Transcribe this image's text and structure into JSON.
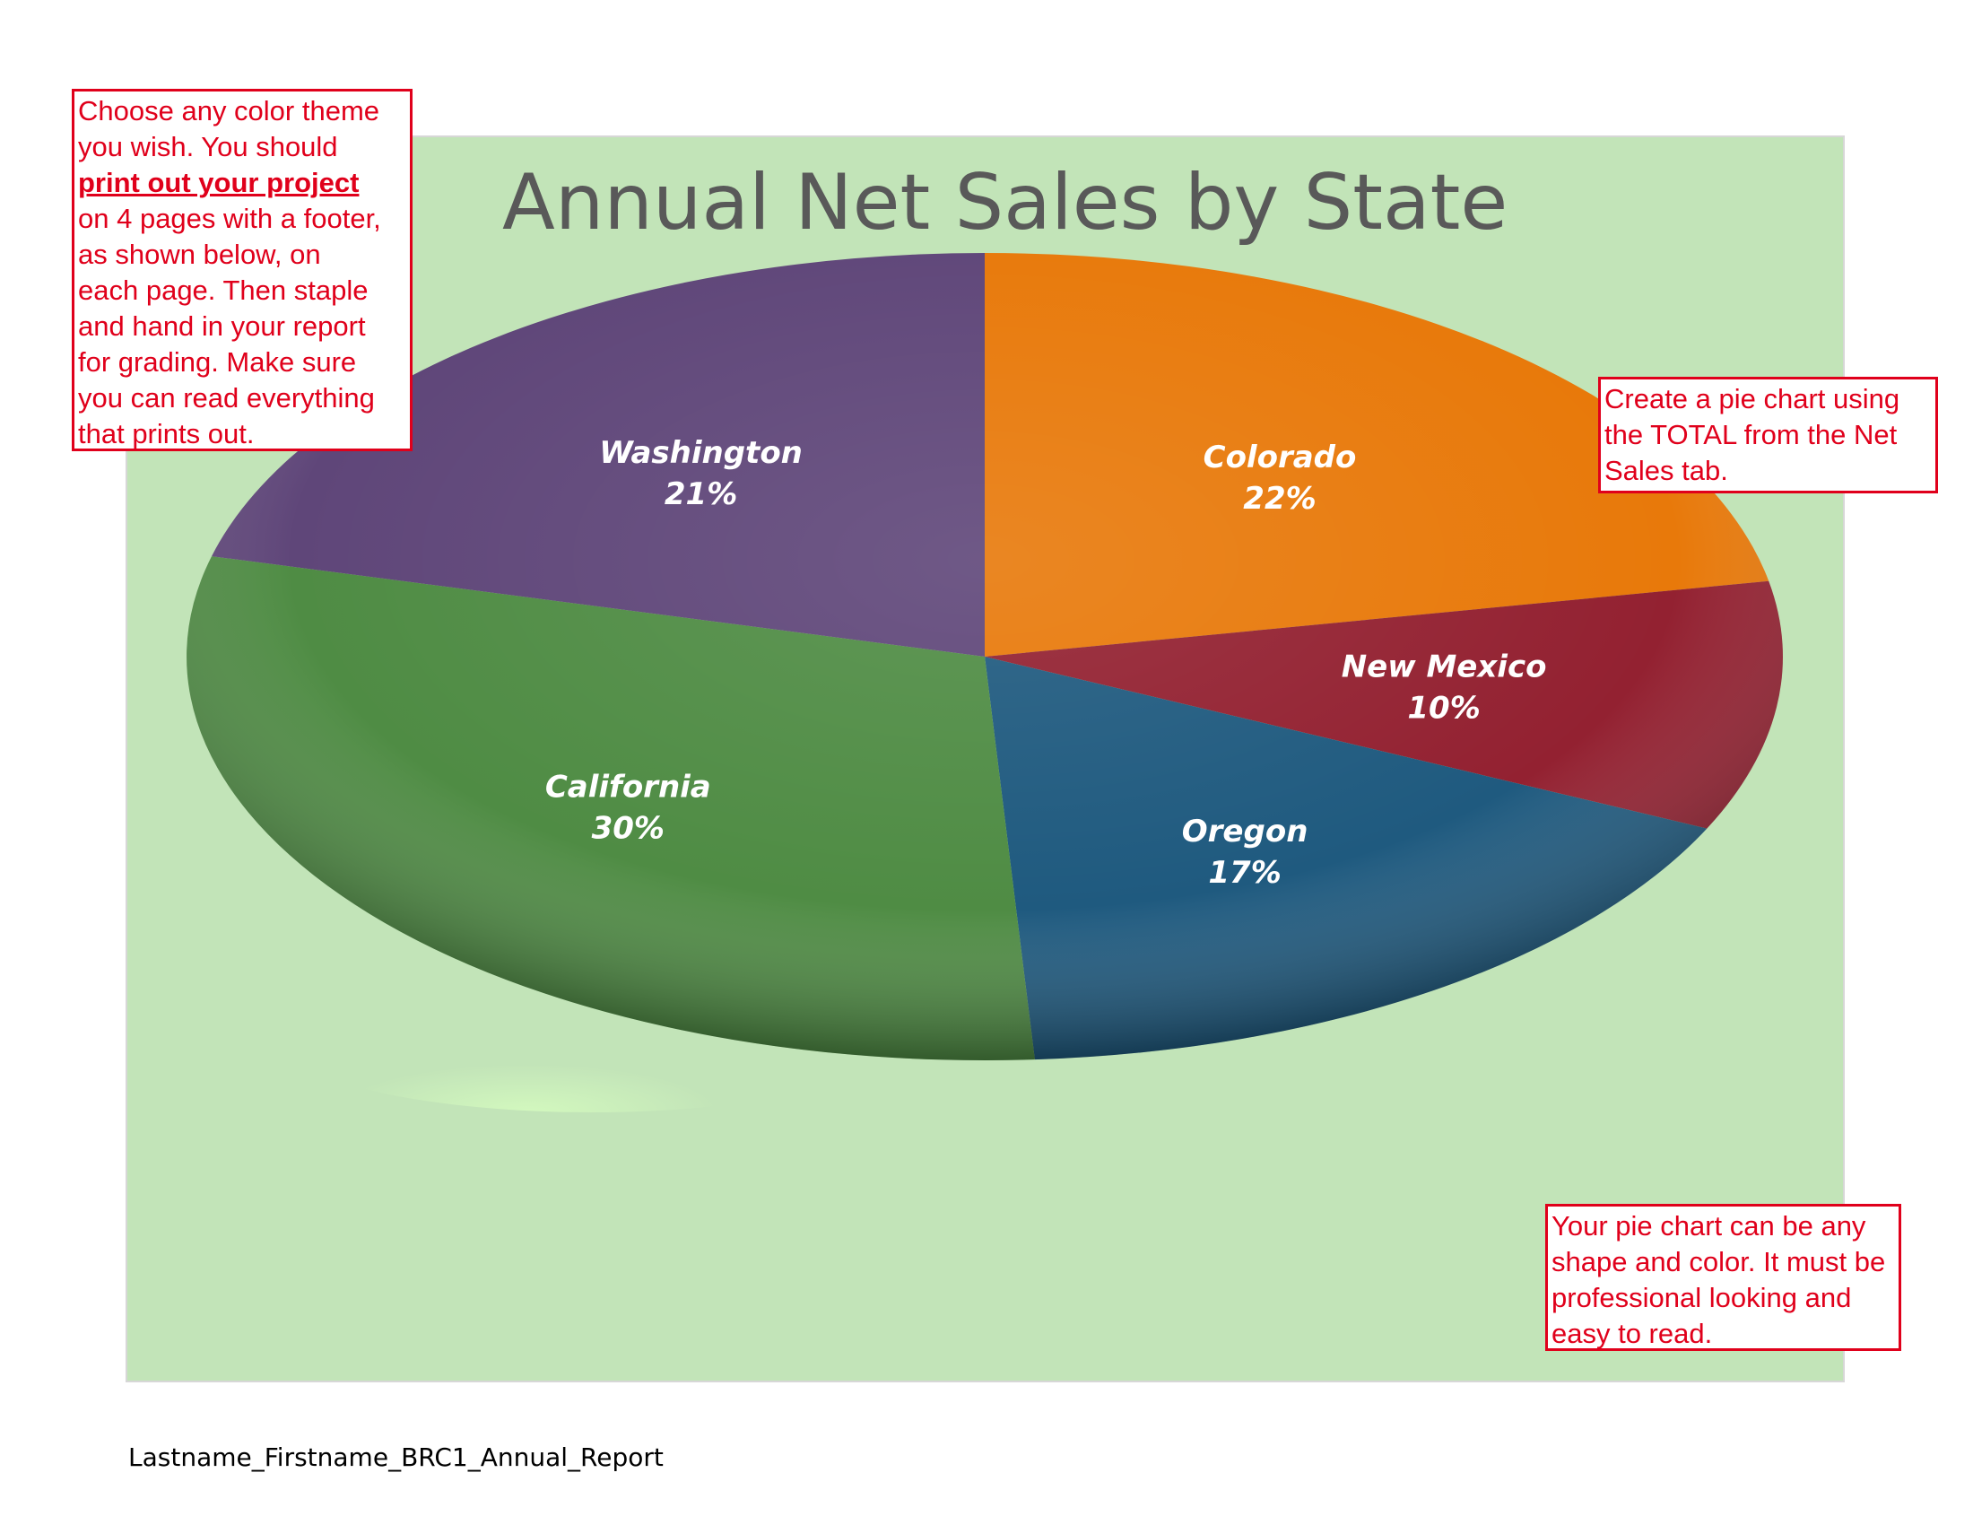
{
  "chart_data": {
    "type": "pie",
    "title": "Annual Net Sales by State",
    "slices": [
      {
        "label": "Colorado",
        "value": 22,
        "value_label": "22%",
        "color": "#e8790a"
      },
      {
        "label": "New Mexico",
        "value": 10,
        "value_label": "10%",
        "color": "#932131"
      },
      {
        "label": "Oregon",
        "value": 17,
        "value_label": "17%",
        "color": "#1f5a7f"
      },
      {
        "label": "California",
        "value": 30,
        "value_label": "30%",
        "color": "#4f8c44"
      },
      {
        "label": "Washington",
        "value": 21,
        "value_label": "21%",
        "color": "#5f4679"
      }
    ],
    "background_color": "#c2e4b8",
    "title_color": "#595959"
  },
  "notes": {
    "left_line1": "Choose any color theme",
    "left_line2": "you wish.  You should",
    "left_bold": "print out your project",
    "left_line4": "on 4 pages with a footer,",
    "left_line5": "as shown below, on",
    "left_line6": "each page.  Then staple",
    "left_line7": "and hand in your report",
    "left_line8": "for grading. Make sure",
    "left_line9": "you can read everything",
    "left_line10": "that prints out.",
    "right_top": "Create a pie chart using the TOTAL from the Net Sales tab.",
    "right_bottom": "Your pie chart can be any shape and color. It must be professional looking and easy to read.",
    "border_color": "#e0001b"
  },
  "footer": {
    "text": "Lastname_Firstname_BRC1_Annual_Report"
  }
}
